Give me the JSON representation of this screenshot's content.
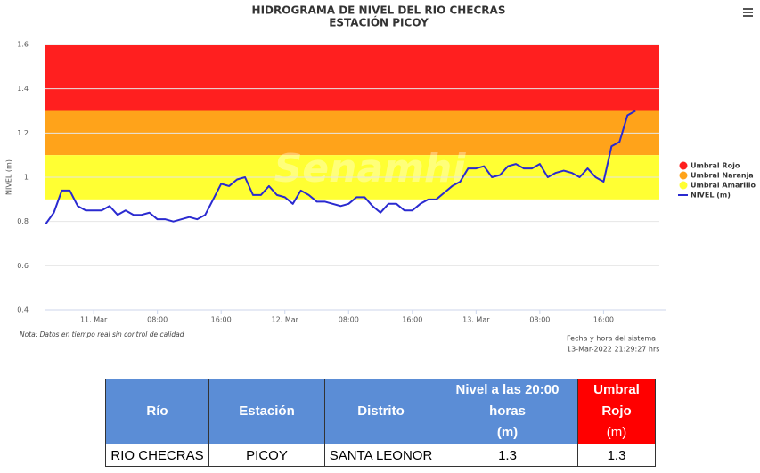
{
  "chart_data": {
    "type": "line",
    "title": "HIDROGRAMA DE NIVEL DEL RIO CHECRAS",
    "subtitle": "ESTACIÓN PICOY",
    "y_label": "NIVEL (m)",
    "watermark": "Senamhi",
    "note": "Nota: Datos en tiempo real sin control de calidad",
    "system_time_label": "Fecha y hora del sistema",
    "system_time": "13-Mar-2022 21:29:27 hrs",
    "ylim": [
      0.4,
      1.6
    ],
    "yticks": [
      0.4,
      0.6,
      0.8,
      1,
      1.2,
      1.4,
      1.6
    ],
    "grid": true,
    "xlim": [
      "10 Mar 17:50",
      "13 Mar 23:00"
    ],
    "xticks": [
      {
        "value": "11 Mar 00:00",
        "label": "11. Mar"
      },
      {
        "value": "11 Mar 08:00",
        "label": "08:00"
      },
      {
        "value": "11 Mar 16:00",
        "label": "16:00"
      },
      {
        "value": "12 Mar 00:00",
        "label": "12. Mar"
      },
      {
        "value": "12 Mar 08:00",
        "label": "08:00"
      },
      {
        "value": "12 Mar 16:00",
        "label": "16:00"
      },
      {
        "value": "13 Mar 00:00",
        "label": "13. Mar"
      },
      {
        "value": "13 Mar 08:00",
        "label": "08:00"
      },
      {
        "value": "13 Mar 16:00",
        "label": "16:00"
      }
    ],
    "legend": "right",
    "bands": [
      {
        "name": "Umbral Rojo",
        "color": "#ff1f1f",
        "range": [
          1.3,
          1.6
        ]
      },
      {
        "name": "Umbral Naranja",
        "color": "#ffa31a",
        "range": [
          1.1,
          1.3
        ]
      },
      {
        "name": "Umbral Amarillo",
        "color": "#ffff33",
        "range": [
          0.9,
          1.1
        ]
      }
    ],
    "x": [
      "10 Mar 18:00",
      "10 Mar 19:00",
      "10 Mar 20:00",
      "10 Mar 21:00",
      "10 Mar 22:00",
      "10 Mar 23:00",
      "11 Mar 00:00",
      "11 Mar 01:00",
      "11 Mar 02:00",
      "11 Mar 03:00",
      "11 Mar 04:00",
      "11 Mar 05:00",
      "11 Mar 06:00",
      "11 Mar 07:00",
      "11 Mar 08:00",
      "11 Mar 09:00",
      "11 Mar 10:00",
      "11 Mar 11:00",
      "11 Mar 12:00",
      "11 Mar 13:00",
      "11 Mar 14:00",
      "11 Mar 15:00",
      "11 Mar 16:00",
      "11 Mar 17:00",
      "11 Mar 18:00",
      "11 Mar 19:00",
      "11 Mar 20:00",
      "11 Mar 21:00",
      "11 Mar 22:00",
      "11 Mar 23:00",
      "12 Mar 00:00",
      "12 Mar 01:00",
      "12 Mar 02:00",
      "12 Mar 03:00",
      "12 Mar 04:00",
      "12 Mar 05:00",
      "12 Mar 06:00",
      "12 Mar 07:00",
      "12 Mar 08:00",
      "12 Mar 09:00",
      "12 Mar 10:00",
      "12 Mar 11:00",
      "12 Mar 12:00",
      "12 Mar 13:00",
      "12 Mar 14:00",
      "12 Mar 15:00",
      "12 Mar 16:00",
      "12 Mar 17:00",
      "12 Mar 18:00",
      "12 Mar 19:00",
      "12 Mar 20:00",
      "12 Mar 21:00",
      "12 Mar 22:00",
      "12 Mar 23:00",
      "13 Mar 00:00",
      "13 Mar 01:00",
      "13 Mar 02:00",
      "13 Mar 03:00",
      "13 Mar 04:00",
      "13 Mar 05:00",
      "13 Mar 06:00",
      "13 Mar 07:00",
      "13 Mar 08:00",
      "13 Mar 09:00",
      "13 Mar 10:00",
      "13 Mar 11:00",
      "13 Mar 12:00",
      "13 Mar 13:00",
      "13 Mar 14:00",
      "13 Mar 15:00",
      "13 Mar 16:00",
      "13 Mar 17:00",
      "13 Mar 18:00",
      "13 Mar 19:00",
      "13 Mar 20:00"
    ],
    "series": [
      {
        "name": "NIVEL (m)",
        "color": "#2a2ad0",
        "values": [
          0.79,
          0.84,
          0.94,
          0.94,
          0.87,
          0.85,
          0.85,
          0.85,
          0.87,
          0.83,
          0.85,
          0.83,
          0.83,
          0.84,
          0.81,
          0.81,
          0.8,
          0.81,
          0.82,
          0.81,
          0.83,
          0.9,
          0.97,
          0.96,
          0.99,
          1.0,
          0.92,
          0.92,
          0.96,
          0.92,
          0.91,
          0.88,
          0.94,
          0.92,
          0.89,
          0.89,
          0.88,
          0.87,
          0.88,
          0.91,
          0.91,
          0.87,
          0.84,
          0.88,
          0.88,
          0.85,
          0.85,
          0.88,
          0.9,
          0.9,
          0.93,
          0.96,
          0.98,
          1.04,
          1.04,
          1.05,
          1.0,
          1.01,
          1.05,
          1.06,
          1.04,
          1.04,
          1.06,
          1.0,
          1.02,
          1.03,
          1.02,
          1.0,
          1.04,
          1.0,
          0.98,
          1.14,
          1.16,
          1.28,
          1.3
        ]
      }
    ]
  },
  "table": {
    "headers": [
      [
        "Río"
      ],
      [
        "Estación"
      ],
      [
        "Distrito"
      ],
      [
        "Nivel a las 20:00",
        "horas",
        "(m)"
      ],
      [
        "Umbral",
        "Rojo",
        "(m)"
      ]
    ],
    "rows": [
      [
        "RIO CHECRAS",
        "PICOY",
        "SANTA LEONOR",
        "1.3",
        "1.3"
      ]
    ]
  }
}
